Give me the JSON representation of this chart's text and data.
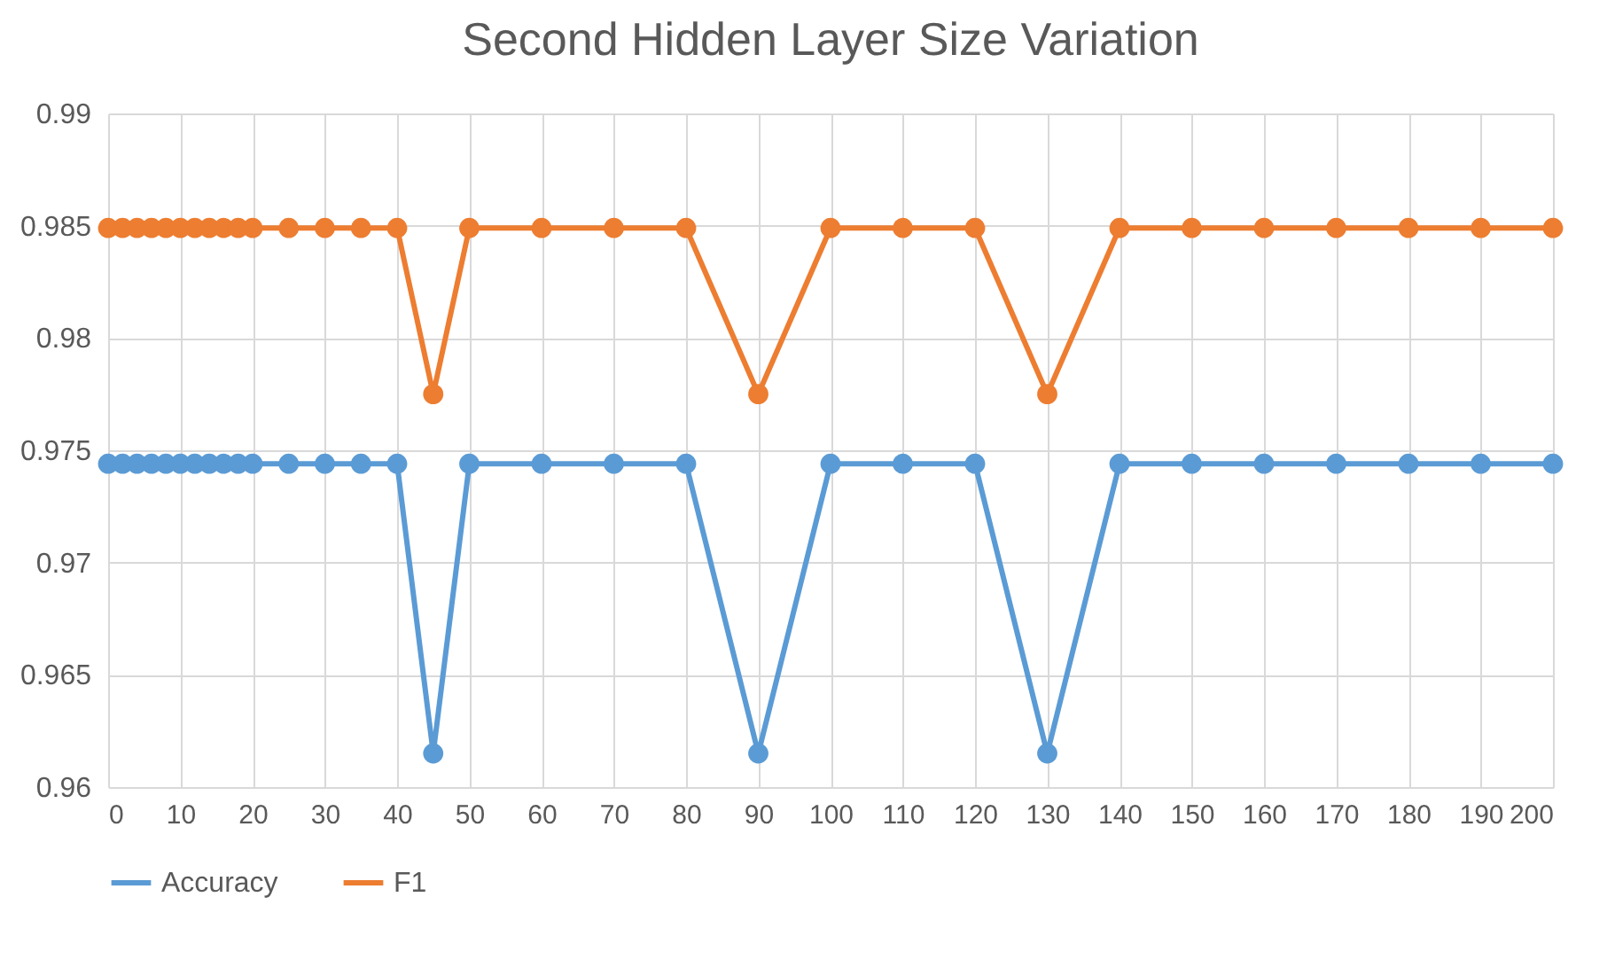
{
  "chart_data": {
    "type": "line",
    "title": "Second Hidden Layer Size Variation",
    "x": [
      0,
      2,
      4,
      6,
      8,
      10,
      12,
      14,
      16,
      18,
      20,
      25,
      30,
      35,
      40,
      45,
      50,
      60,
      70,
      80,
      90,
      100,
      110,
      120,
      130,
      140,
      150,
      160,
      170,
      180,
      190,
      200
    ],
    "series": [
      {
        "name": "Accuracy",
        "color": "#5b9bd5",
        "values": [
          0.9744,
          0.9744,
          0.9744,
          0.9744,
          0.9744,
          0.9744,
          0.9744,
          0.9744,
          0.9744,
          0.9744,
          0.9744,
          0.9744,
          0.9744,
          0.9744,
          0.9744,
          0.9615,
          0.9744,
          0.9744,
          0.9744,
          0.9744,
          0.9615,
          0.9744,
          0.9744,
          0.9744,
          0.9615,
          0.9744,
          0.9744,
          0.9744,
          0.9744,
          0.9744,
          0.9744,
          0.9744
        ]
      },
      {
        "name": "F1",
        "color": "#ed7d31",
        "values": [
          0.9849,
          0.9849,
          0.9849,
          0.9849,
          0.9849,
          0.9849,
          0.9849,
          0.9849,
          0.9849,
          0.9849,
          0.9849,
          0.9849,
          0.9849,
          0.9849,
          0.9849,
          0.9775,
          0.9849,
          0.9849,
          0.9849,
          0.9849,
          0.9775,
          0.9849,
          0.9849,
          0.9849,
          0.9775,
          0.9849,
          0.9849,
          0.9849,
          0.9849,
          0.9849,
          0.9849,
          0.9849
        ]
      }
    ],
    "xlim": [
      0,
      200
    ],
    "xticks": [
      0,
      10,
      20,
      30,
      40,
      50,
      60,
      70,
      80,
      90,
      100,
      110,
      120,
      130,
      140,
      150,
      160,
      170,
      180,
      190,
      200
    ],
    "ylim": [
      0.96,
      0.99
    ],
    "yticks": [
      0.96,
      0.965,
      0.97,
      0.975,
      0.98,
      0.985,
      0.99
    ],
    "grid": true,
    "legend": "bottom",
    "marker": "circle",
    "line_style": "solid"
  }
}
